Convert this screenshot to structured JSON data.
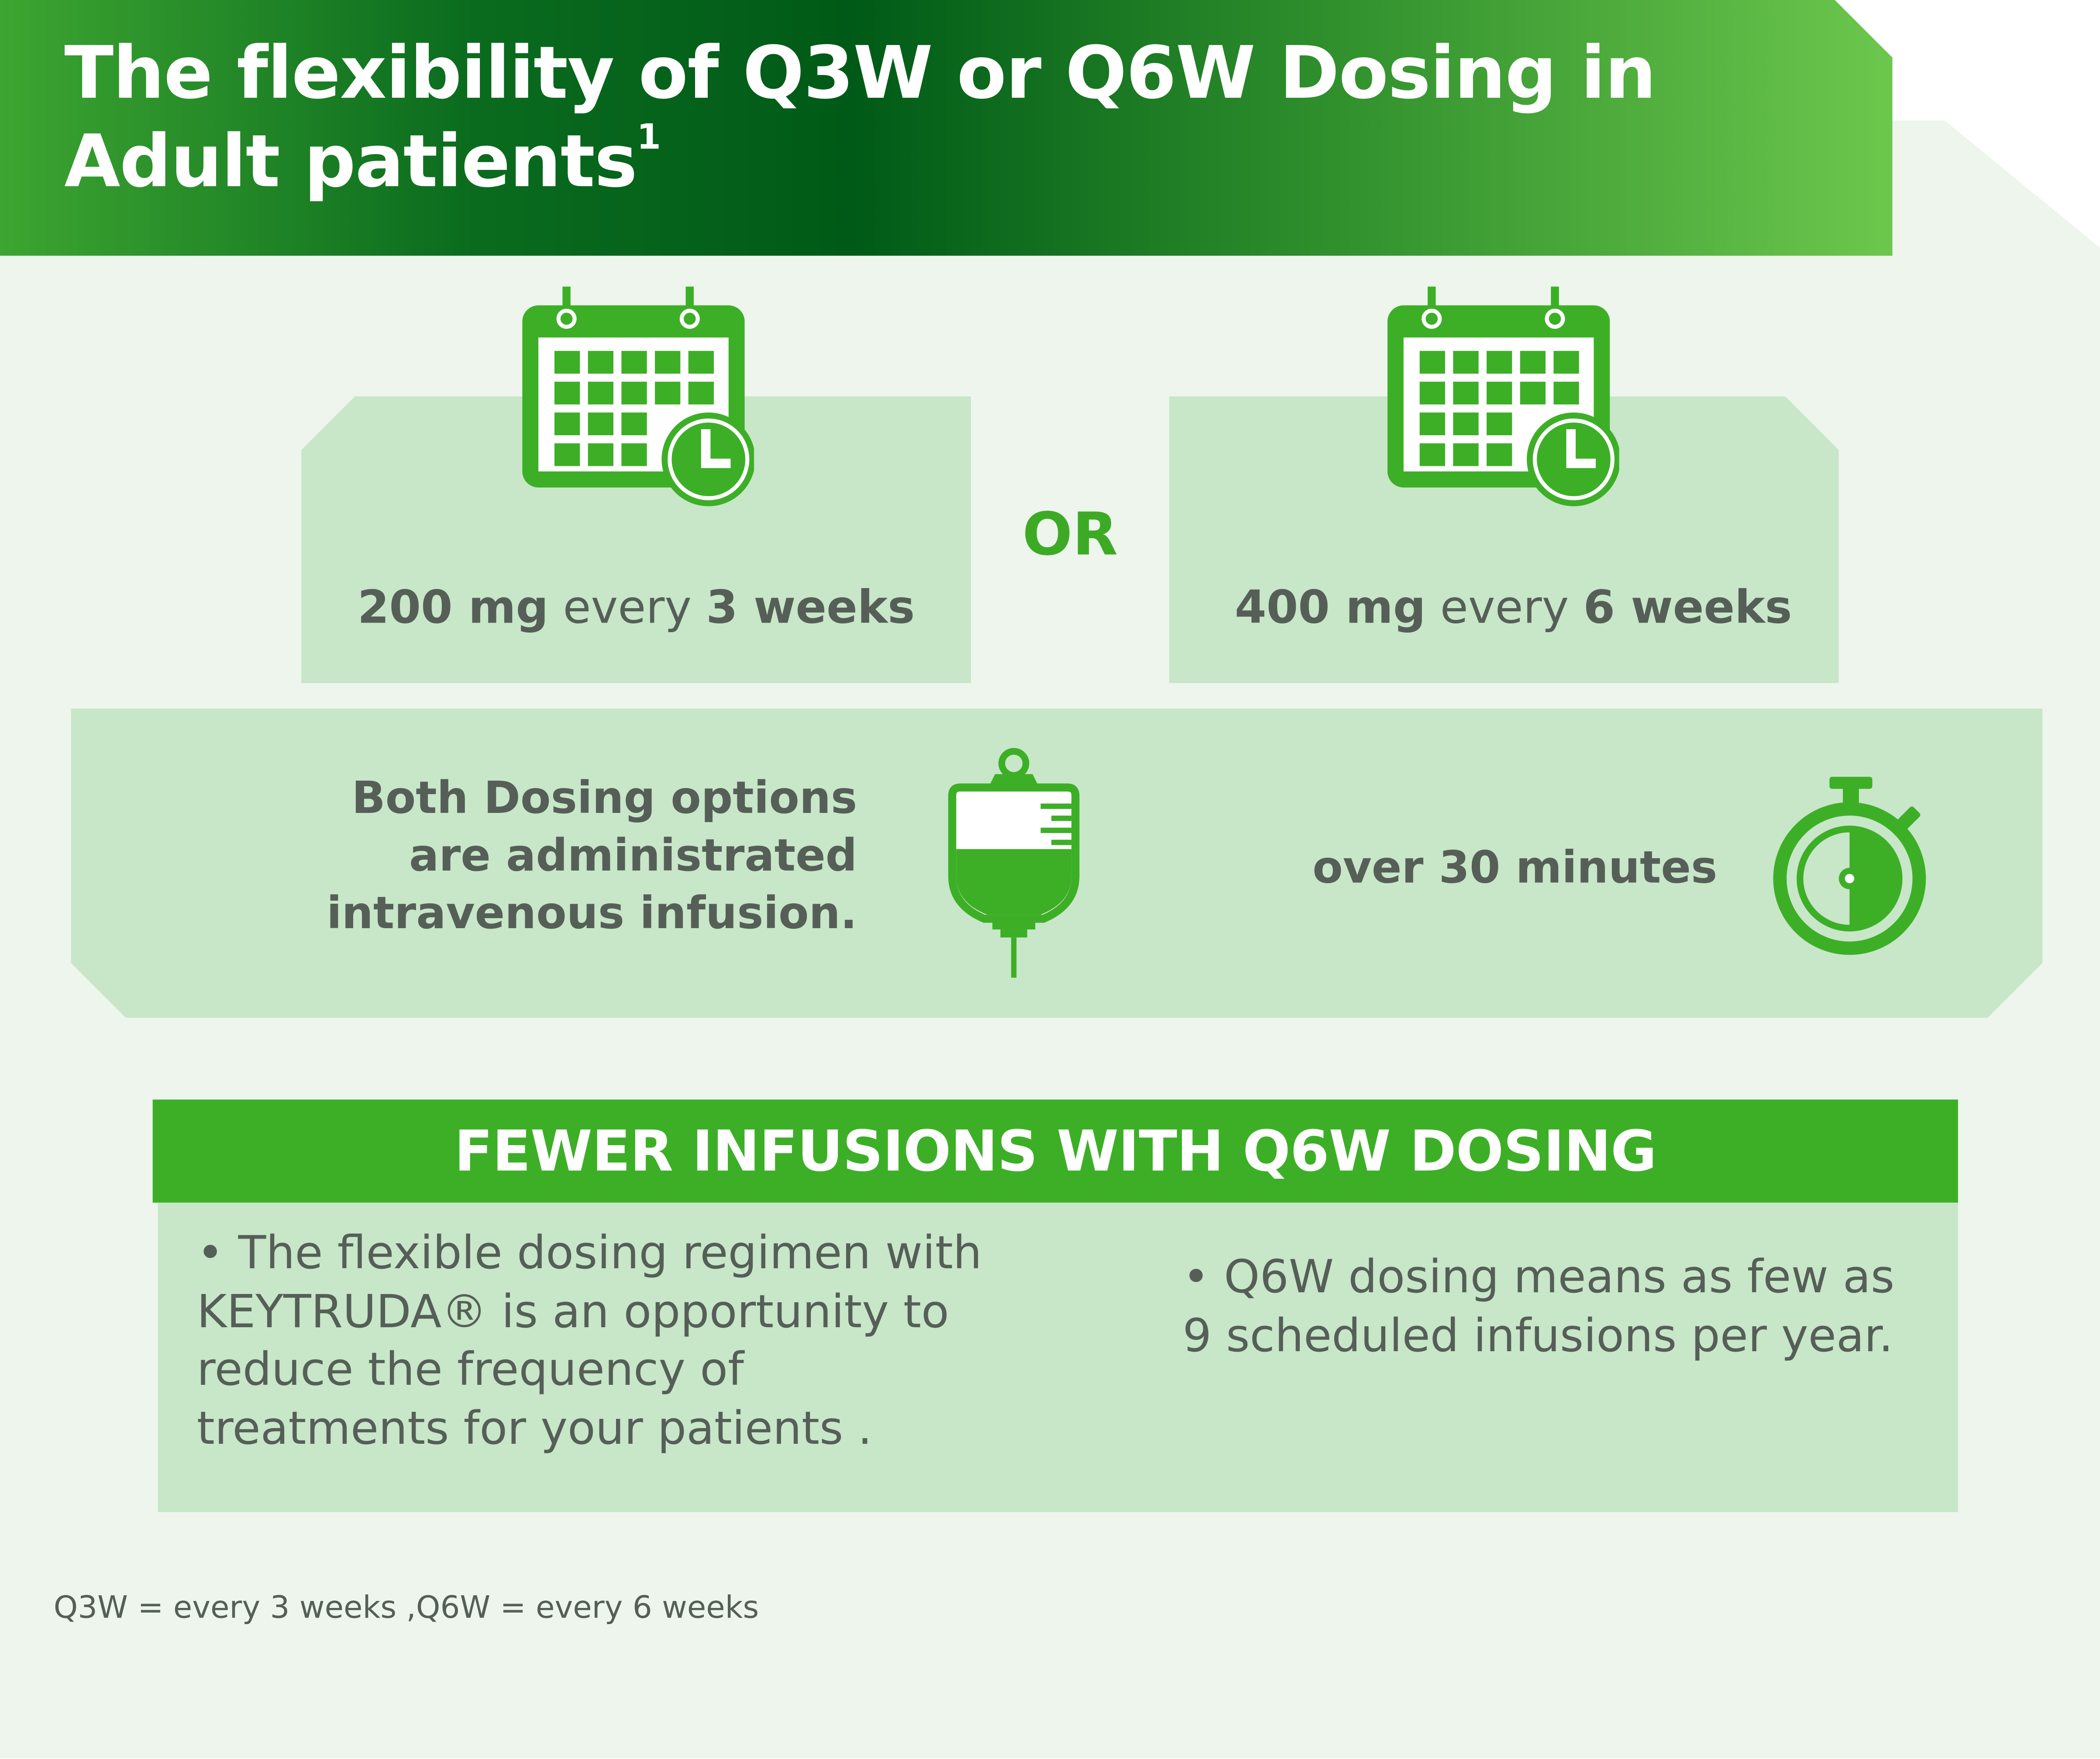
{
  "header": {
    "title": "The flexibility of Q3W or Q6W Dosing in Adult patients",
    "title_sup": "1"
  },
  "dosing": {
    "left": {
      "amount": "200 mg",
      "connector": " every ",
      "interval": "3 weeks"
    },
    "separator": "OR",
    "right": {
      "amount": "400 mg",
      "connector": " every ",
      "interval": "6 weeks"
    }
  },
  "infusion": {
    "lines": [
      "Both Dosing options",
      "are administrated",
      "intravenous infusion."
    ],
    "duration": "over 30 minutes"
  },
  "fewer": {
    "heading": "FEWER INFUSIONS WITH Q6W DOSING",
    "bullet_left": "• The flexible dosing regimen with KEYTRUDA® is an opportunity to reduce the frequency of treatments for your patients .",
    "bullet_right": "• Q6W dosing means as few as 9 scheduled infusions per year."
  },
  "footnote": "Q3W = every 3 weeks  ,Q6W = every 6 weeks",
  "colors": {
    "brand_green": "#3daf27",
    "dark_green": "#005a17",
    "light_panel": "#c8e6c8",
    "background_panel": "#edf5ec",
    "text_gray": "#555f57"
  },
  "icons": [
    "calendar-clock-icon",
    "calendar-clock-icon",
    "iv-bag-icon",
    "stopwatch-icon"
  ]
}
